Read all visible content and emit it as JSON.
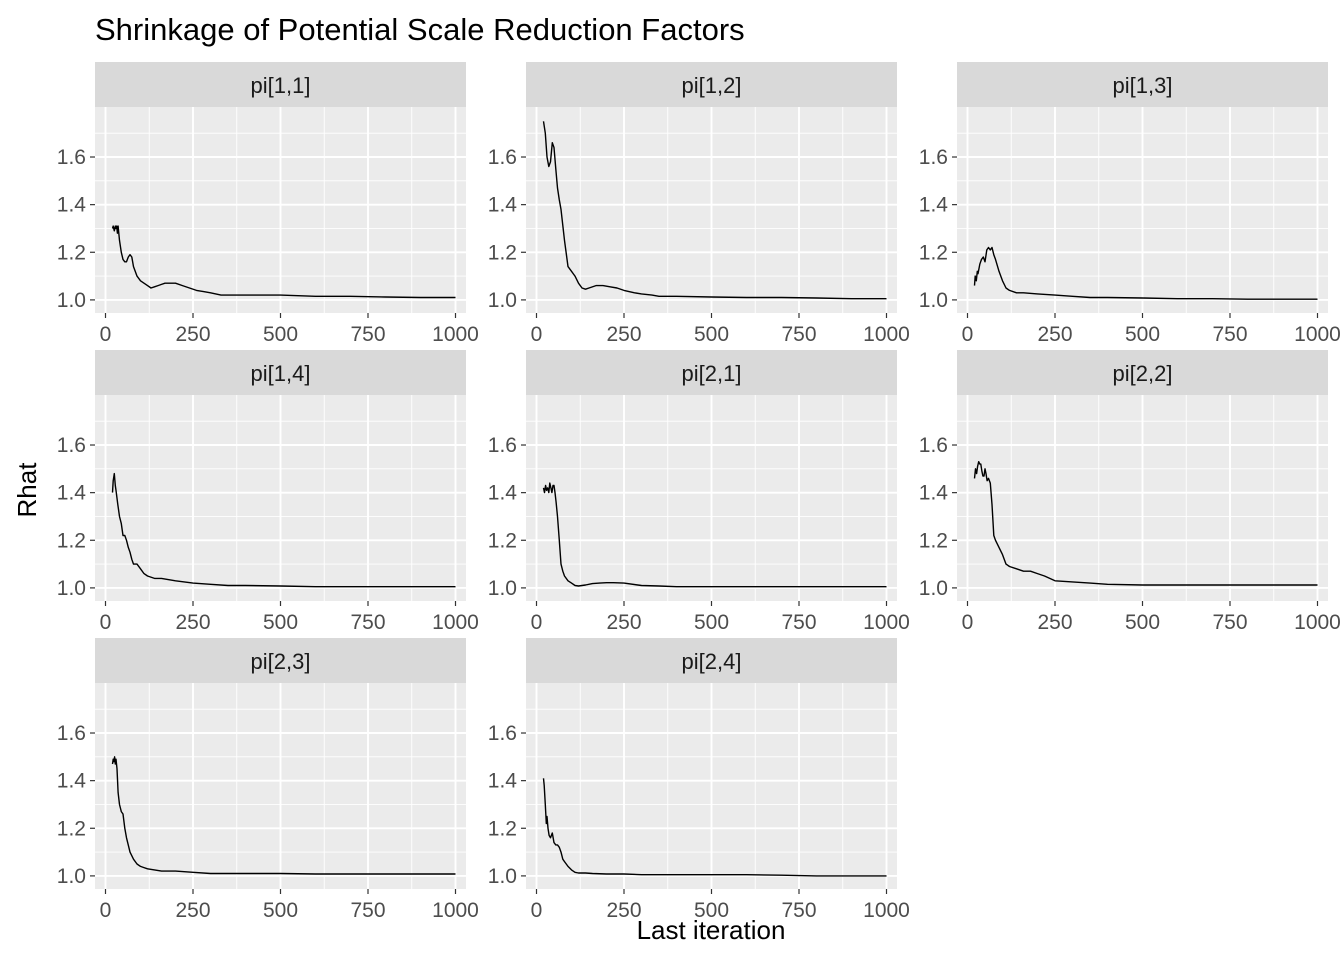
{
  "chart_data": {
    "type": "line",
    "title": "Shrinkage of Potential Scale Reduction Factors",
    "xlabel": "Last iteration",
    "ylabel": "Rhat",
    "xlim": [
      -30,
      1030
    ],
    "ylim": [
      0.945,
      1.81
    ],
    "x_ticks": [
      0,
      250,
      500,
      750,
      1000
    ],
    "x_tick_labels": [
      "0",
      "250",
      "500",
      "750",
      "1000"
    ],
    "y_ticks": [
      1.0,
      1.2,
      1.4,
      1.6
    ],
    "y_tick_labels": [
      "1.0",
      "1.2",
      "1.4",
      "1.6"
    ],
    "grid": true,
    "facet_layout": {
      "columns": 3,
      "rows": 3
    },
    "panels": [
      {
        "strip": "pi[1,1]",
        "x": [
          20,
          22,
          25,
          28,
          30,
          32,
          34,
          36,
          40,
          45,
          50,
          55,
          60,
          65,
          70,
          75,
          80,
          90,
          100,
          110,
          120,
          130,
          140,
          150,
          160,
          170,
          180,
          200,
          220,
          240,
          260,
          280,
          300,
          330,
          350,
          400,
          450,
          500,
          600,
          700,
          800,
          900,
          1000
        ],
        "values": [
          1.3,
          1.31,
          1.29,
          1.31,
          1.3,
          1.31,
          1.28,
          1.31,
          1.25,
          1.2,
          1.17,
          1.16,
          1.16,
          1.18,
          1.19,
          1.18,
          1.14,
          1.1,
          1.08,
          1.07,
          1.06,
          1.05,
          1.055,
          1.06,
          1.065,
          1.07,
          1.07,
          1.07,
          1.06,
          1.05,
          1.04,
          1.035,
          1.03,
          1.02,
          1.02,
          1.02,
          1.02,
          1.02,
          1.015,
          1.015,
          1.012,
          1.01,
          1.01
        ]
      },
      {
        "strip": "pi[1,2]",
        "x": [
          20,
          25,
          30,
          35,
          40,
          45,
          50,
          55,
          60,
          65,
          70,
          80,
          90,
          100,
          110,
          120,
          130,
          140,
          150,
          170,
          190,
          210,
          230,
          250,
          280,
          300,
          330,
          350,
          400,
          500,
          600,
          700,
          800,
          900,
          1000
        ],
        "values": [
          1.75,
          1.7,
          1.6,
          1.56,
          1.58,
          1.66,
          1.64,
          1.55,
          1.47,
          1.42,
          1.38,
          1.25,
          1.14,
          1.12,
          1.1,
          1.07,
          1.05,
          1.045,
          1.05,
          1.06,
          1.06,
          1.055,
          1.05,
          1.04,
          1.03,
          1.025,
          1.02,
          1.015,
          1.015,
          1.012,
          1.01,
          1.01,
          1.008,
          1.005,
          1.005
        ]
      },
      {
        "strip": "pi[1,3]",
        "x": [
          20,
          22,
          25,
          28,
          30,
          35,
          40,
          45,
          50,
          55,
          60,
          65,
          70,
          75,
          80,
          90,
          100,
          110,
          120,
          140,
          160,
          200,
          250,
          300,
          350,
          400,
          500,
          600,
          700,
          800,
          900,
          1000
        ],
        "values": [
          1.06,
          1.1,
          1.08,
          1.12,
          1.11,
          1.15,
          1.17,
          1.18,
          1.16,
          1.21,
          1.22,
          1.21,
          1.22,
          1.19,
          1.17,
          1.12,
          1.08,
          1.05,
          1.04,
          1.03,
          1.03,
          1.025,
          1.02,
          1.015,
          1.01,
          1.01,
          1.008,
          1.005,
          1.005,
          1.003,
          1.003,
          1.003
        ]
      },
      {
        "strip": "pi[1,4]",
        "x": [
          20,
          22,
          25,
          28,
          30,
          35,
          40,
          45,
          50,
          55,
          60,
          65,
          70,
          75,
          80,
          90,
          100,
          110,
          120,
          140,
          160,
          200,
          250,
          300,
          350,
          400,
          500,
          600,
          700,
          800,
          900,
          1000
        ],
        "values": [
          1.4,
          1.45,
          1.48,
          1.43,
          1.41,
          1.35,
          1.3,
          1.27,
          1.22,
          1.22,
          1.2,
          1.17,
          1.15,
          1.12,
          1.1,
          1.1,
          1.08,
          1.06,
          1.05,
          1.04,
          1.04,
          1.03,
          1.02,
          1.015,
          1.01,
          1.01,
          1.008,
          1.005,
          1.005,
          1.005,
          1.005,
          1.005
        ]
      },
      {
        "strip": "pi[2,1]",
        "x": [
          20,
          23,
          26,
          29,
          32,
          35,
          38,
          41,
          44,
          47,
          50,
          53,
          56,
          60,
          65,
          70,
          75,
          80,
          90,
          100,
          110,
          120,
          140,
          160,
          180,
          200,
          220,
          250,
          300,
          350,
          400,
          500,
          600,
          700,
          800,
          900,
          1000
        ],
        "values": [
          1.42,
          1.4,
          1.43,
          1.41,
          1.42,
          1.4,
          1.44,
          1.42,
          1.4,
          1.43,
          1.43,
          1.4,
          1.36,
          1.3,
          1.2,
          1.1,
          1.07,
          1.05,
          1.03,
          1.02,
          1.01,
          1.008,
          1.012,
          1.018,
          1.02,
          1.022,
          1.022,
          1.02,
          1.01,
          1.008,
          1.005,
          1.005,
          1.005,
          1.005,
          1.005,
          1.005,
          1.005
        ]
      },
      {
        "strip": "pi[2,2]",
        "x": [
          20,
          23,
          26,
          29,
          32,
          35,
          38,
          41,
          44,
          47,
          50,
          53,
          56,
          60,
          65,
          70,
          75,
          80,
          90,
          100,
          110,
          120,
          140,
          160,
          180,
          200,
          220,
          250,
          300,
          350,
          400,
          500,
          600,
          700,
          800,
          900,
          1000
        ],
        "values": [
          1.46,
          1.5,
          1.48,
          1.51,
          1.53,
          1.52,
          1.52,
          1.49,
          1.47,
          1.47,
          1.5,
          1.48,
          1.45,
          1.46,
          1.44,
          1.35,
          1.22,
          1.2,
          1.17,
          1.14,
          1.1,
          1.09,
          1.08,
          1.07,
          1.07,
          1.06,
          1.05,
          1.03,
          1.025,
          1.02,
          1.015,
          1.012,
          1.012,
          1.012,
          1.012,
          1.012,
          1.012
        ]
      },
      {
        "strip": "pi[2,3]",
        "x": [
          20,
          22,
          24,
          26,
          28,
          30,
          33,
          36,
          40,
          45,
          50,
          55,
          60,
          70,
          80,
          90,
          100,
          110,
          120,
          140,
          160,
          200,
          250,
          300,
          400,
          500,
          600,
          700,
          800,
          900,
          1000
        ],
        "values": [
          1.47,
          1.49,
          1.48,
          1.5,
          1.47,
          1.49,
          1.45,
          1.35,
          1.3,
          1.27,
          1.26,
          1.2,
          1.16,
          1.1,
          1.07,
          1.05,
          1.04,
          1.035,
          1.03,
          1.025,
          1.02,
          1.02,
          1.015,
          1.01,
          1.01,
          1.01,
          1.008,
          1.008,
          1.008,
          1.008,
          1.008
        ]
      },
      {
        "strip": "pi[2,4]",
        "x": [
          20,
          22,
          25,
          28,
          30,
          33,
          36,
          40,
          45,
          50,
          55,
          60,
          65,
          70,
          75,
          80,
          90,
          100,
          110,
          120,
          140,
          160,
          200,
          250,
          300,
          400,
          500,
          600,
          700,
          800,
          900,
          1000
        ],
        "values": [
          1.41,
          1.38,
          1.3,
          1.22,
          1.25,
          1.2,
          1.17,
          1.16,
          1.18,
          1.14,
          1.13,
          1.13,
          1.12,
          1.1,
          1.07,
          1.06,
          1.04,
          1.025,
          1.015,
          1.012,
          1.012,
          1.01,
          1.008,
          1.008,
          1.005,
          1.005,
          1.005,
          1.005,
          1.003,
          1.0,
          1.0,
          1.0
        ]
      }
    ]
  },
  "colors": {
    "panel_background": "#ebebeb",
    "strip_background": "#d9d9d9",
    "grid_line": "#ffffff",
    "series_line": "#000000",
    "tick_text": "#4d4d4d"
  }
}
